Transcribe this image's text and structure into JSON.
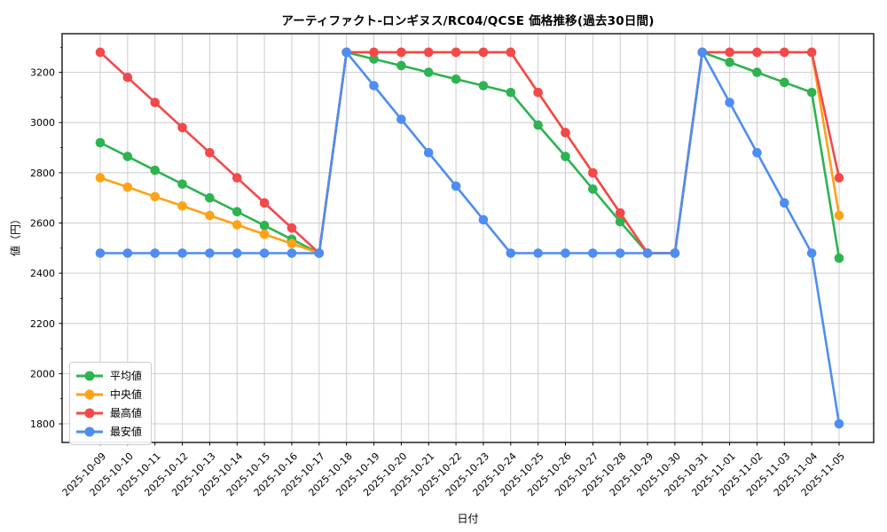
{
  "chart_data": {
    "type": "line",
    "title": "アーティファクト-ロンギヌス/RC04/QCSE 価格推移(過去30日間)",
    "xlabel": "日付",
    "ylabel": "値（円）",
    "grid": true,
    "grid_color": "#cccccc",
    "background": "#ffffff",
    "legend_position": "lower left",
    "ylim": [
      1726,
      3354
    ],
    "y_ticks": [
      1800,
      2000,
      2200,
      2400,
      2600,
      2800,
      3000,
      3200
    ],
    "y_minor_ticks": [
      1900,
      2100,
      2300,
      2500,
      2700,
      2900,
      3100,
      3300
    ],
    "x": [
      "2025-10-09",
      "2025-10-10",
      "2025-10-11",
      "2025-10-12",
      "2025-10-13",
      "2025-10-14",
      "2025-10-15",
      "2025-10-16",
      "2025-10-17",
      "2025-10-18",
      "2025-10-19",
      "2025-10-20",
      "2025-10-21",
      "2025-10-22",
      "2025-10-23",
      "2025-10-24",
      "2025-10-25",
      "2025-10-26",
      "2025-10-27",
      "2025-10-28",
      "2025-10-29",
      "2025-10-30",
      "2025-10-31",
      "2025-11-01",
      "2025-11-02",
      "2025-11-03",
      "2025-11-04",
      "2025-11-05"
    ],
    "series": [
      {
        "id": "mean",
        "name": "平均値",
        "color": "#2db350",
        "values": [
          2920,
          2865,
          2810,
          2755,
          2700,
          2645,
          2590,
          2535,
          2480,
          3280,
          3253,
          3227,
          3200,
          3173,
          3147,
          3120,
          2990,
          2865,
          2735,
          2605,
          2480,
          2480,
          3280,
          3240,
          3200,
          3160,
          3120,
          2460
        ]
      },
      {
        "id": "median",
        "name": "中央値",
        "color": "#ffa216",
        "values": [
          2780,
          2743,
          2705,
          2668,
          2630,
          2593,
          2555,
          2518,
          2480,
          3280,
          3280,
          3280,
          3280,
          3280,
          3280,
          3280,
          3120,
          2960,
          2800,
          2640,
          2480,
          2480,
          3280,
          3280,
          3280,
          3280,
          3280,
          2630
        ]
      },
      {
        "id": "max",
        "name": "最高値",
        "color": "#f4484b",
        "values": [
          3280,
          3180,
          3080,
          2980,
          2880,
          2780,
          2680,
          2580,
          2480,
          3280,
          3280,
          3280,
          3280,
          3280,
          3280,
          3280,
          3120,
          2960,
          2800,
          2640,
          2480,
          2480,
          3280,
          3280,
          3280,
          3280,
          3280,
          2780
        ]
      },
      {
        "id": "min",
        "name": "最安値",
        "color": "#4e8df2",
        "values": [
          2480,
          2480,
          2480,
          2480,
          2480,
          2480,
          2480,
          2480,
          2480,
          3280,
          3147,
          3013,
          2880,
          2747,
          2613,
          2480,
          2480,
          2480,
          2480,
          2480,
          2480,
          2480,
          3280,
          3080,
          2880,
          2680,
          2480,
          1800
        ]
      }
    ]
  }
}
